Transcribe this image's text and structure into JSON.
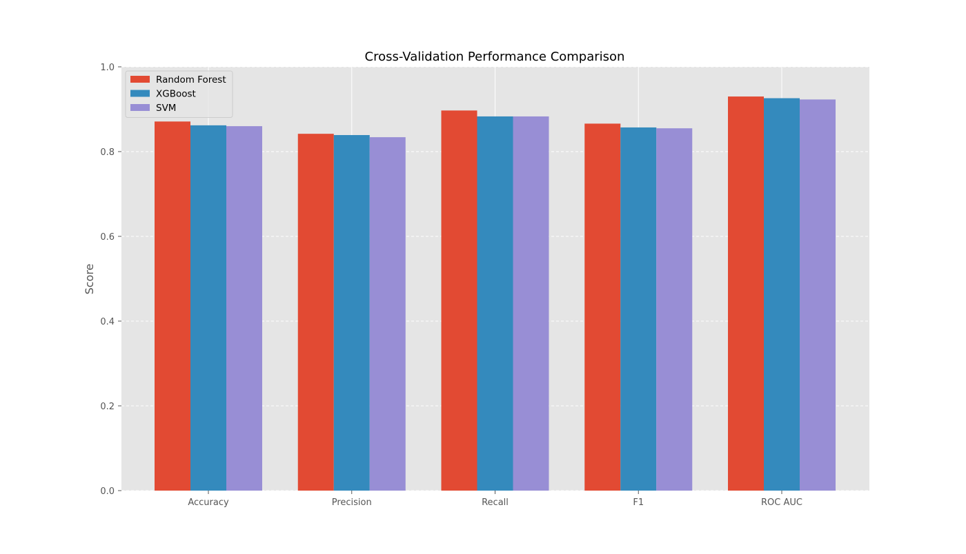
{
  "chart_data": {
    "type": "bar",
    "title": "Cross-Validation Performance Comparison",
    "xlabel": "",
    "ylabel": "Score",
    "ylim": [
      0,
      1.0
    ],
    "yticks": [
      "0.0",
      "0.2",
      "0.4",
      "0.6",
      "0.8",
      "1.0"
    ],
    "ytick_values": [
      0,
      0.2,
      0.4,
      0.6,
      0.8,
      1.0
    ],
    "categories": [
      "Accuracy",
      "Precision",
      "Recall",
      "F1",
      "ROC AUC"
    ],
    "series": [
      {
        "name": "Random Forest",
        "color": "#E24A33",
        "values": [
          0.871,
          0.842,
          0.897,
          0.866,
          0.93
        ]
      },
      {
        "name": "XGBoost",
        "color": "#348ABD",
        "values": [
          0.862,
          0.839,
          0.883,
          0.857,
          0.926
        ]
      },
      {
        "name": "SVM",
        "color": "#988ED5",
        "values": [
          0.86,
          0.834,
          0.883,
          0.855,
          0.923
        ]
      }
    ],
    "grid": true,
    "legend_position": "top-left",
    "background_color": "#E5E5E5"
  }
}
